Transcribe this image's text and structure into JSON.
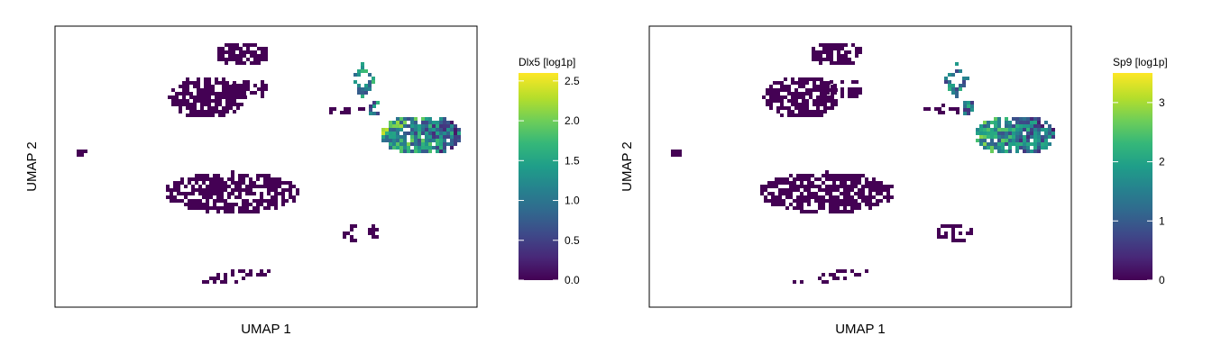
{
  "chart_data": [
    {
      "type": "heatmap",
      "subtype": "umap-hexbin",
      "xlabel": "UMAP 1",
      "ylabel": "UMAP 2",
      "colorbar": {
        "title": "Dlx5 [log1p]",
        "colormap": "viridis",
        "range": [
          0,
          2.6
        ],
        "ticks": [
          0.0,
          0.5,
          1.0,
          1.5,
          2.0,
          2.5
        ],
        "tick_labels": [
          "0.0",
          "0.5",
          "1.0",
          "1.5",
          "2.0",
          "2.5"
        ]
      },
      "grid": false,
      "expressing_clusters": [
        "top-right diamond",
        "right elongated cluster"
      ]
    },
    {
      "type": "heatmap",
      "subtype": "umap-hexbin",
      "xlabel": "UMAP 1",
      "ylabel": "UMAP 2",
      "colorbar": {
        "title": "Sp9 [log1p]",
        "colormap": "viridis",
        "range": [
          0,
          3.5
        ],
        "ticks": [
          0,
          1,
          2,
          3
        ],
        "tick_labels": [
          "0",
          "1",
          "2",
          "3"
        ]
      },
      "grid": false,
      "expressing_clusters": [
        "top-right diamond",
        "right elongated cluster"
      ]
    }
  ],
  "colors": {
    "viridis": [
      "#440154",
      "#482878",
      "#3e4989",
      "#31688e",
      "#26828e",
      "#1f9e89",
      "#35b779",
      "#6ece58",
      "#b5de2b",
      "#fde725"
    ],
    "frame": "#000000",
    "background": "#ffffff"
  }
}
